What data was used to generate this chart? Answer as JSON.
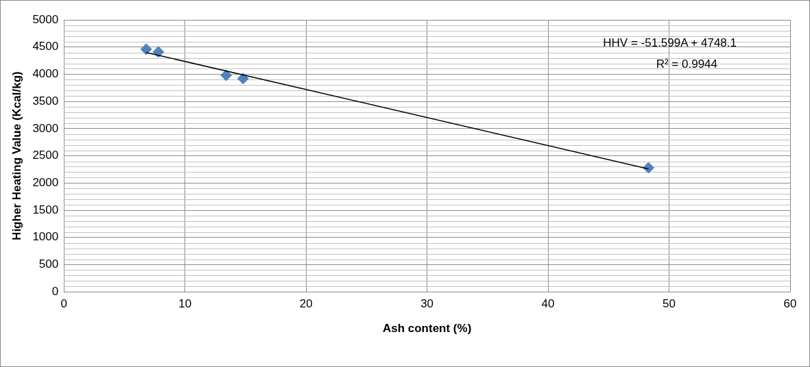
{
  "chart_data": {
    "type": "scatter",
    "xlabel": "Ash content (%)",
    "ylabel": "Higher Heating Value (Kcal/kg)",
    "series": [
      {
        "type": "scatter",
        "color": "#4f81bd",
        "x": [
          6.8,
          7.8,
          13.4,
          14.8,
          48.3
        ],
        "values": [
          4460,
          4410,
          3980,
          3920,
          2280
        ],
        "marker": "diamond"
      },
      {
        "type": "line",
        "color": "#000000",
        "x": [
          6.8,
          48.3
        ],
        "values": [
          4400,
          2260
        ],
        "marker": "none",
        "line_style": "solid"
      }
    ],
    "xlim": [
      0,
      60
    ],
    "xticks": [
      0,
      10,
      20,
      30,
      40,
      50,
      60
    ],
    "ylim": [
      0,
      5000
    ],
    "yticks": [
      0,
      500,
      1000,
      1500,
      2000,
      2500,
      3000,
      3500,
      4000,
      4500,
      5000
    ],
    "grid": true,
    "legend": false,
    "annotations": [
      "HHV = -51.599A + 4748.1",
      "R² = 0.9944"
    ]
  }
}
